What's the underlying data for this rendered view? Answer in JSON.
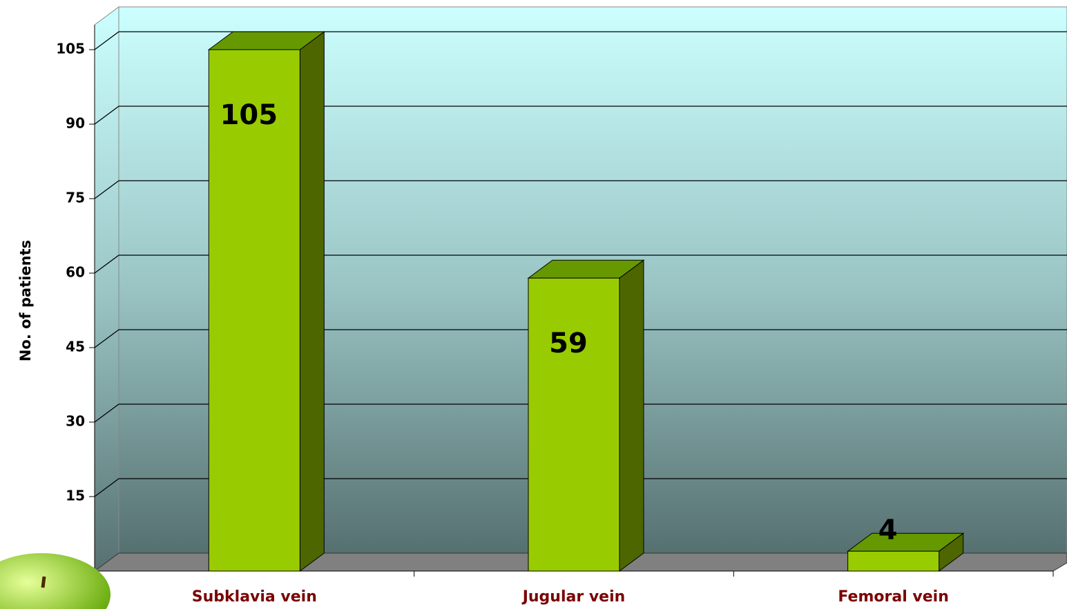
{
  "chart_data": {
    "type": "bar3d",
    "y_label": "No. of patients",
    "categories": [
      "Subklavia vein",
      "Jugular vein",
      "Femoral vein"
    ],
    "values": [
      105,
      59,
      4
    ],
    "color": "#99cc00",
    "ylim": [
      0,
      110
    ],
    "yticks": [
      0,
      15,
      30,
      45,
      60,
      75,
      90,
      105
    ],
    "grid": true
  }
}
